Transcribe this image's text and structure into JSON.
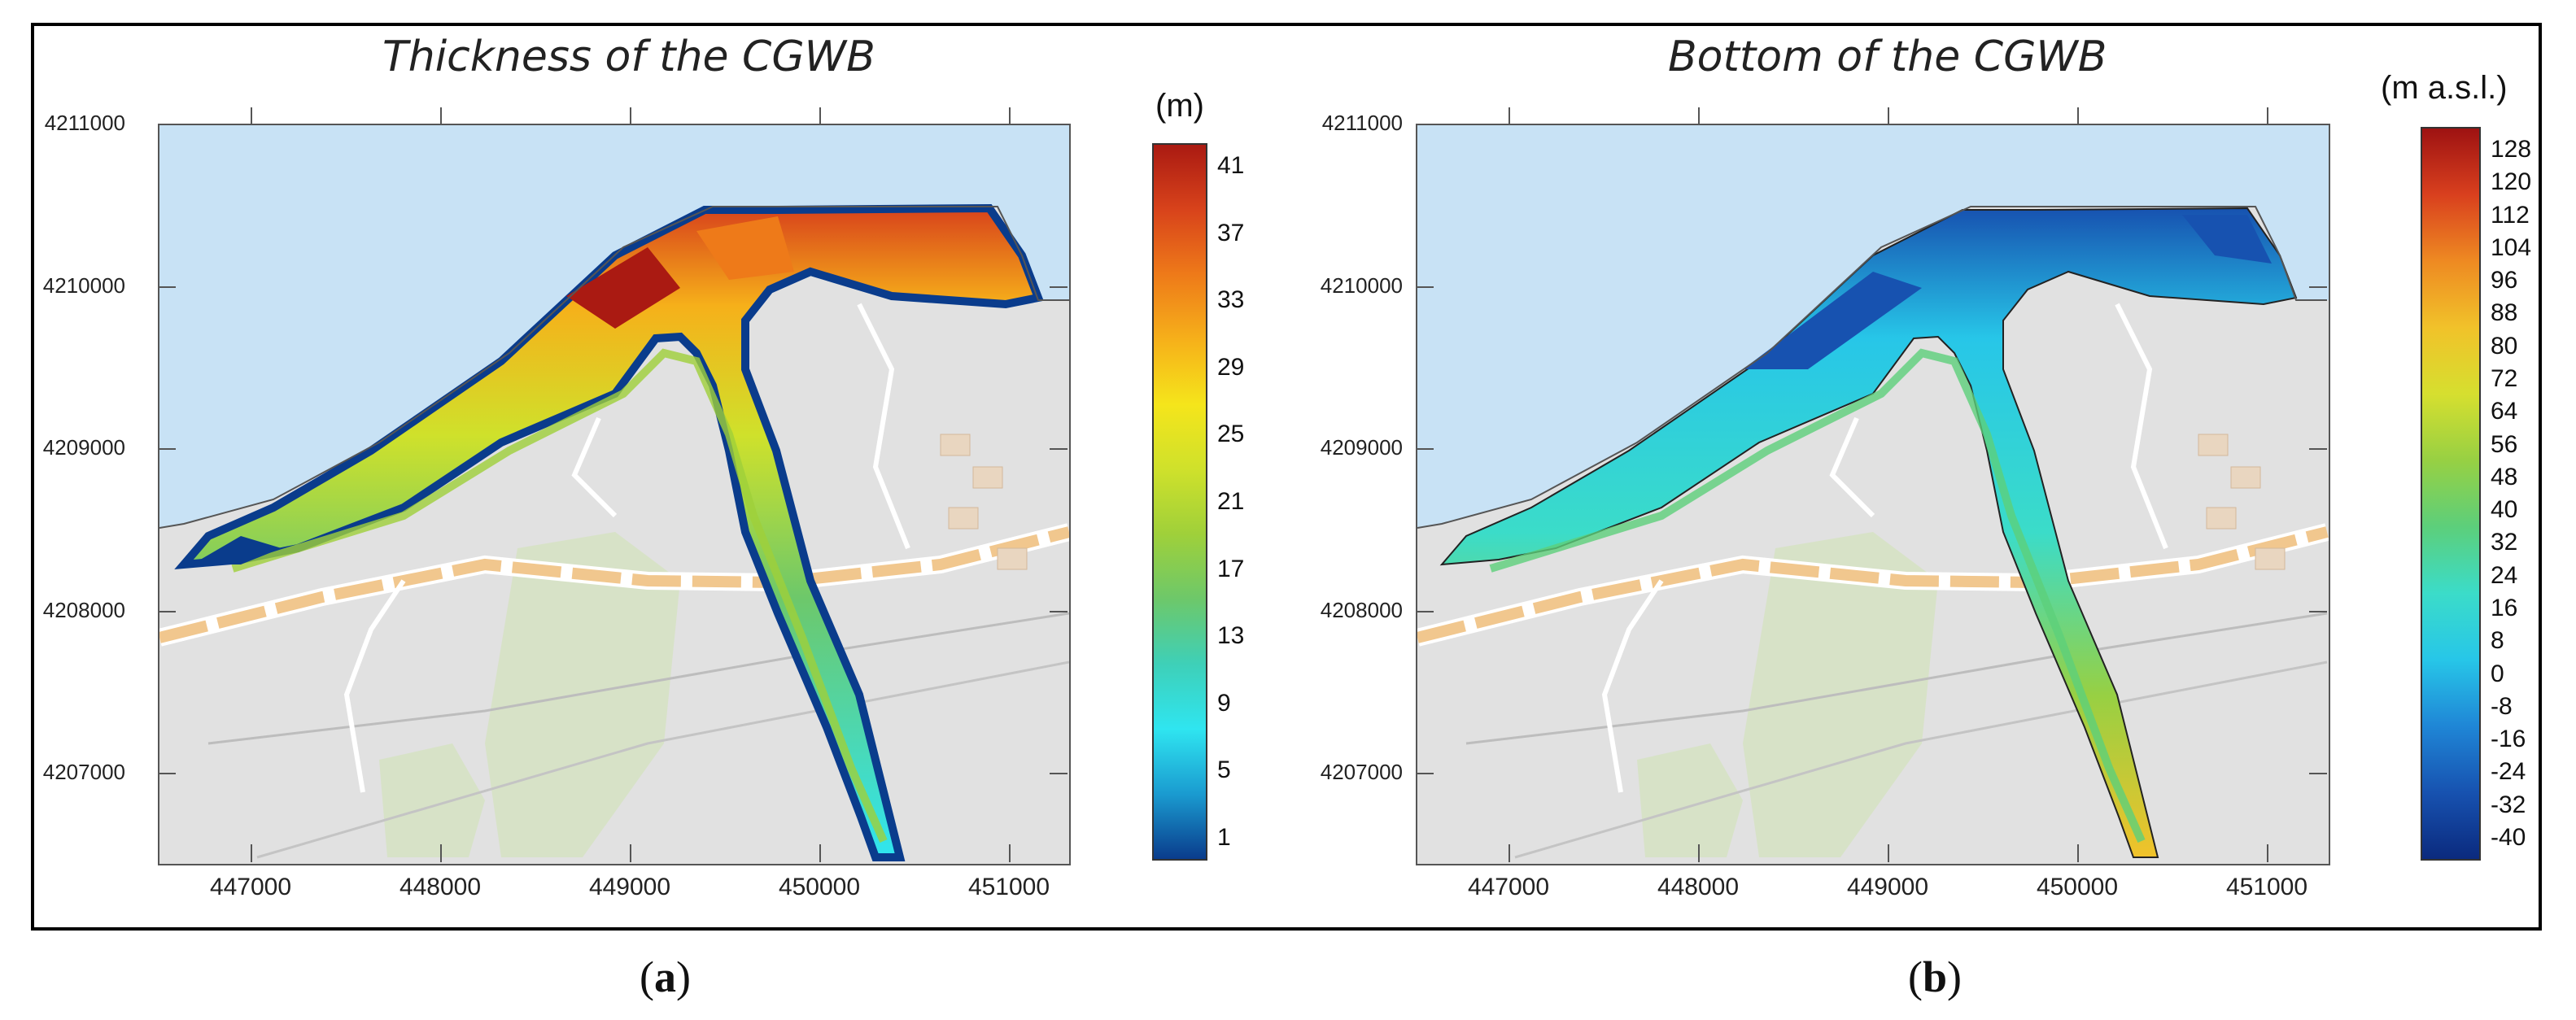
{
  "panels": [
    {
      "title": "Thickness of the CGWB",
      "unit": "(m)",
      "label_open": "(",
      "label_letter": "a",
      "label_close": ")",
      "y_ticks": [
        "4211000",
        "4210000",
        "4209000",
        "4208000",
        "4207000"
      ],
      "x_ticks": [
        "447000",
        "448000",
        "449000",
        "450000",
        "451000"
      ],
      "colorbar_labels": [
        "41",
        "37",
        "33",
        "29",
        "25",
        "21",
        "17",
        "13",
        "9",
        "5",
        "1"
      ]
    },
    {
      "title": "Bottom  of the CGWB",
      "unit": "(m a.s.l.)",
      "label_open": "(",
      "label_letter": "b",
      "label_close": ")",
      "y_ticks": [
        "4211000",
        "4210000",
        "4209000",
        "4208000",
        "4207000"
      ],
      "x_ticks": [
        "447000",
        "448000",
        "449000",
        "450000",
        "451000"
      ],
      "colorbar_labels": [
        "128",
        "120",
        "112",
        "104",
        "96",
        "88",
        "80",
        "72",
        "64",
        "56",
        "48",
        "40",
        "32",
        "24",
        "16",
        "8",
        "0",
        "-8",
        "-16",
        "-24",
        "-32",
        "-40"
      ]
    }
  ],
  "colors": {
    "sea": "#c8e2f5",
    "land": "#e1e1e1",
    "road": "#f1c78e",
    "thickness_scale": [
      "#0a3c8c",
      "#1a9bd0",
      "#2fe5f0",
      "#3ed0b8",
      "#6dc86a",
      "#9fd03a",
      "#cfe12b",
      "#f5e51b",
      "#f6b01a",
      "#ee7a19",
      "#d8431b",
      "#aa1a12"
    ],
    "bottom_scale": [
      "#0b2a7e",
      "#1752b0",
      "#1f86d6",
      "#27c6e8",
      "#3bdcc9",
      "#5ccf7b",
      "#97d043",
      "#d6df2f",
      "#f1c22a",
      "#ee8a22",
      "#d9401e",
      "#9e1212"
    ]
  }
}
